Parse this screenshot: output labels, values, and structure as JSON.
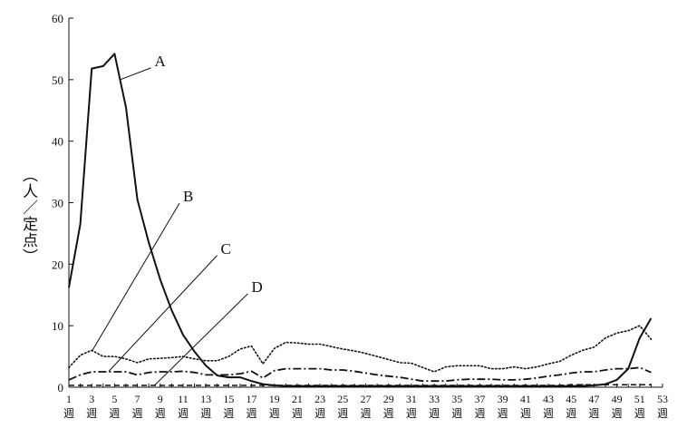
{
  "chart_data": {
    "type": "line",
    "ylabel": "（人／定点）",
    "ylim": [
      0,
      60
    ],
    "yticks": [
      0,
      10,
      20,
      30,
      40,
      50,
      60
    ],
    "xlim": [
      1,
      53
    ],
    "xticks": [
      1,
      3,
      5,
      7,
      9,
      11,
      13,
      15,
      17,
      19,
      21,
      23,
      25,
      27,
      29,
      31,
      33,
      35,
      37,
      39,
      41,
      43,
      45,
      47,
      49,
      51,
      53
    ],
    "xtick_suffix": "週",
    "grid": false,
    "series": [
      {
        "name": "A",
        "style": "solid",
        "x": [
          1,
          2,
          3,
          4,
          5,
          6,
          7,
          8,
          9,
          10,
          11,
          12,
          13,
          14,
          15,
          16,
          17,
          18,
          19,
          20,
          21,
          22,
          23,
          24,
          25,
          26,
          27,
          28,
          29,
          30,
          31,
          32,
          33,
          34,
          35,
          36,
          37,
          38,
          39,
          40,
          41,
          42,
          43,
          44,
          45,
          46,
          47,
          48,
          49,
          50,
          51,
          52
        ],
        "values": [
          16.2,
          26.5,
          51.8,
          52.2,
          54.2,
          45.5,
          30.5,
          23.5,
          17.5,
          12.5,
          8.5,
          5.8,
          3.5,
          1.9,
          1.6,
          1.6,
          1.0,
          0.5,
          0.3,
          0.2,
          0.2,
          0.2,
          0.2,
          0.2,
          0.2,
          0.2,
          0.2,
          0.2,
          0.2,
          0.2,
          0.2,
          0.2,
          0.2,
          0.2,
          0.2,
          0.2,
          0.2,
          0.2,
          0.2,
          0.2,
          0.2,
          0.2,
          0.2,
          0.2,
          0.2,
          0.2,
          0.3,
          0.5,
          1.2,
          3.0,
          8.0,
          11.2
        ]
      },
      {
        "name": "B",
        "style": "dotted",
        "x": [
          1,
          2,
          3,
          4,
          5,
          6,
          7,
          8,
          9,
          10,
          11,
          12,
          13,
          14,
          15,
          16,
          17,
          18,
          19,
          20,
          21,
          22,
          23,
          24,
          25,
          26,
          27,
          28,
          29,
          30,
          31,
          32,
          33,
          34,
          35,
          36,
          37,
          38,
          39,
          40,
          41,
          42,
          43,
          44,
          45,
          46,
          47,
          48,
          49,
          50,
          51,
          52
        ],
        "values": [
          3.2,
          5.2,
          6.0,
          5.0,
          5.0,
          4.6,
          4.0,
          4.6,
          4.7,
          4.8,
          5.0,
          4.6,
          4.3,
          4.3,
          5.0,
          6.2,
          6.7,
          3.8,
          6.3,
          7.3,
          7.2,
          7.0,
          7.0,
          6.6,
          6.2,
          5.9,
          5.5,
          5.0,
          4.5,
          4.0,
          3.9,
          3.2,
          2.5,
          3.3,
          3.5,
          3.5,
          3.5,
          3.0,
          3.0,
          3.3,
          3.0,
          3.3,
          3.8,
          4.2,
          5.2,
          6.0,
          6.5,
          8.0,
          8.8,
          9.2,
          10.0,
          7.8
        ]
      },
      {
        "name": "C",
        "style": "dashdot",
        "x": [
          1,
          2,
          3,
          4,
          5,
          6,
          7,
          8,
          9,
          10,
          11,
          12,
          13,
          14,
          15,
          16,
          17,
          18,
          19,
          20,
          21,
          22,
          23,
          24,
          25,
          26,
          27,
          28,
          29,
          30,
          31,
          32,
          33,
          34,
          35,
          36,
          37,
          38,
          39,
          40,
          41,
          42,
          43,
          44,
          45,
          46,
          47,
          48,
          49,
          50,
          51,
          52
        ],
        "values": [
          1.2,
          2.0,
          2.5,
          2.5,
          2.5,
          2.5,
          2.0,
          2.4,
          2.5,
          2.5,
          2.6,
          2.4,
          2.0,
          2.0,
          2.0,
          2.2,
          2.6,
          1.5,
          2.7,
          3.0,
          3.0,
          3.0,
          3.0,
          2.8,
          2.8,
          2.6,
          2.3,
          2.0,
          1.8,
          1.6,
          1.3,
          1.0,
          1.0,
          1.0,
          1.2,
          1.3,
          1.3,
          1.3,
          1.2,
          1.2,
          1.3,
          1.5,
          1.8,
          2.0,
          2.3,
          2.5,
          2.5,
          2.8,
          3.0,
          3.0,
          3.2,
          2.4
        ]
      },
      {
        "name": "D",
        "style": "dashed",
        "x": [
          1,
          2,
          3,
          4,
          5,
          6,
          7,
          8,
          9,
          10,
          11,
          12,
          13,
          14,
          15,
          16,
          17,
          18,
          19,
          20,
          21,
          22,
          23,
          24,
          25,
          26,
          27,
          28,
          29,
          30,
          31,
          32,
          33,
          34,
          35,
          36,
          37,
          38,
          39,
          40,
          41,
          42,
          43,
          44,
          45,
          46,
          47,
          48,
          49,
          50,
          51,
          52
        ],
        "values": [
          0.3,
          0.3,
          0.3,
          0.3,
          0.3,
          0.3,
          0.3,
          0.3,
          0.3,
          0.3,
          0.3,
          0.3,
          0.3,
          0.3,
          0.3,
          0.3,
          0.3,
          0.3,
          0.3,
          0.3,
          0.3,
          0.3,
          0.3,
          0.3,
          0.3,
          0.3,
          0.3,
          0.3,
          0.3,
          0.3,
          0.3,
          0.3,
          0.3,
          0.3,
          0.3,
          0.3,
          0.3,
          0.3,
          0.3,
          0.3,
          0.3,
          0.3,
          0.3,
          0.3,
          0.4,
          0.4,
          0.4,
          0.4,
          0.4,
          0.4,
          0.4,
          0.4
        ]
      }
    ],
    "annotations": [
      {
        "label": "A",
        "series": "A",
        "point_x": 5.5,
        "point_y": 50.0,
        "label_x": 8.5,
        "label_y": 52.5
      },
      {
        "label": "B",
        "series": "B",
        "point_x": 3.0,
        "point_y": 5.8,
        "label_x": 11.0,
        "label_y": 30.5
      },
      {
        "label": "C",
        "series": "C",
        "point_x": 4.5,
        "point_y": 2.6,
        "label_x": 14.3,
        "label_y": 22.0
      },
      {
        "label": "D",
        "series": "D",
        "point_x": 8.5,
        "point_y": 0.3,
        "label_x": 17.0,
        "label_y": 15.8
      }
    ]
  }
}
